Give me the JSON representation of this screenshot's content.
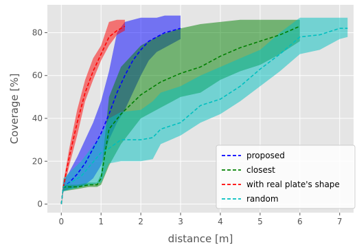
{
  "chart_data": {
    "type": "line",
    "title": "",
    "xlabel": "distance [m]",
    "ylabel": "Coverage [%]",
    "xlim": [
      -0.35,
      7.35
    ],
    "ylim": [
      -4,
      93
    ],
    "xticks": [
      "0",
      "1",
      "2",
      "3",
      "4",
      "5",
      "6",
      "7"
    ],
    "yticks": [
      "0",
      "20",
      "40",
      "60",
      "80"
    ],
    "grid": true,
    "legend_position": "lower-right",
    "background": "#e5e5e5",
    "series": [
      {
        "name": "proposed",
        "color": "#0000ff",
        "line_style": "dashed",
        "x": [
          0,
          0.05,
          0.2,
          0.4,
          0.6,
          0.8,
          1.0,
          1.2,
          1.4,
          1.6,
          1.8,
          2.0,
          2.2,
          2.4,
          2.6,
          2.8,
          3.0
        ],
        "y": [
          0,
          8,
          10,
          14,
          19,
          26,
          33,
          42,
          52,
          60,
          67,
          72,
          76,
          78,
          80,
          81,
          82
        ],
        "lower": [
          0,
          6,
          7,
          8,
          9,
          12,
          18,
          30,
          38,
          44,
          52,
          60,
          67,
          71,
          73,
          75,
          77
        ],
        "upper": [
          0,
          10,
          15,
          22,
          30,
          38,
          48,
          62,
          80,
          85,
          86,
          87,
          87,
          87,
          88,
          88,
          88
        ]
      },
      {
        "name": "closest",
        "color": "#008000",
        "line_style": "dashed",
        "x": [
          0,
          0.05,
          0.4,
          0.7,
          0.9,
          1.0,
          1.2,
          1.5,
          2.0,
          2.5,
          3.0,
          3.5,
          4.0,
          4.5,
          5.0,
          5.5,
          6.0
        ],
        "y": [
          0,
          8,
          8,
          9,
          9,
          12,
          35,
          42,
          51,
          57,
          61,
          64,
          69,
          73,
          76,
          79,
          83
        ],
        "lower": [
          0,
          6,
          7,
          8,
          8,
          9,
          18,
          28,
          40,
          45,
          50,
          52,
          58,
          62,
          65,
          70,
          76
        ],
        "upper": [
          0,
          9,
          9,
          10,
          10,
          14,
          50,
          64,
          74,
          79,
          82,
          84,
          85,
          86,
          86,
          86,
          86
        ]
      },
      {
        "name": "with real plate's shape",
        "color": "#ff0000",
        "line_style": "dashed",
        "x": [
          0,
          0.05,
          0.2,
          0.4,
          0.6,
          0.8,
          1.0,
          1.2,
          1.4,
          1.6
        ],
        "y": [
          0,
          8,
          22,
          38,
          52,
          62,
          70,
          78,
          81,
          83
        ],
        "lower": [
          0,
          6,
          18,
          32,
          48,
          58,
          67,
          74,
          79,
          81
        ],
        "upper": [
          0,
          10,
          26,
          44,
          58,
          68,
          74,
          85,
          86,
          86
        ]
      },
      {
        "name": "random",
        "color": "#00bfbf",
        "line_style": "dashed",
        "x": [
          0,
          0.05,
          0.5,
          1.0,
          1.2,
          1.5,
          2.0,
          2.3,
          2.5,
          3.0,
          3.5,
          4.0,
          4.5,
          5.0,
          5.5,
          6.0,
          6.5,
          7.0,
          7.2
        ],
        "y": [
          0,
          8,
          13,
          24,
          26,
          30,
          30,
          31,
          35,
          38,
          46,
          49,
          55,
          63,
          70,
          78,
          79,
          82,
          82
        ],
        "lower": [
          0,
          6,
          8,
          10,
          19,
          20,
          20,
          21,
          28,
          32,
          38,
          42,
          48,
          55,
          62,
          70,
          72,
          77,
          78
        ],
        "upper": [
          0,
          12,
          20,
          32,
          40,
          43,
          44,
          48,
          52,
          55,
          60,
          64,
          68,
          72,
          80,
          87,
          87,
          87,
          87
        ]
      }
    ]
  }
}
